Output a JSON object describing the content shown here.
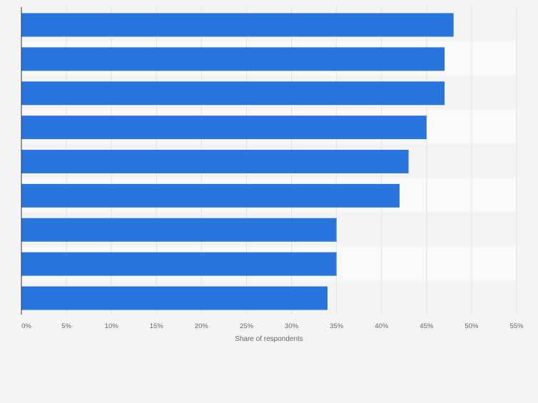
{
  "chart_data": {
    "type": "bar",
    "orientation": "horizontal",
    "categories": [
      "",
      "",
      "",
      "",
      "",
      "",
      "",
      "",
      ""
    ],
    "values": [
      48,
      47,
      47,
      45,
      43,
      42,
      35,
      35,
      34
    ],
    "xlabel": "Share of respondents",
    "ylabel": "",
    "xlim": [
      0,
      55
    ],
    "x_ticks": [
      "0%",
      "5%",
      "10%",
      "15%",
      "20%",
      "25%",
      "30%",
      "35%",
      "40%",
      "45%",
      "50%",
      "55%"
    ],
    "grid": true,
    "legend": "none",
    "colors": {
      "bar": "#2876dd",
      "background": "#f4f4f4",
      "band_light": "#f9f9f9",
      "band_dark": "#f4f4f4",
      "gridline": "#e2e2e2",
      "axis": "#333333",
      "tick_text": "#666666"
    }
  }
}
